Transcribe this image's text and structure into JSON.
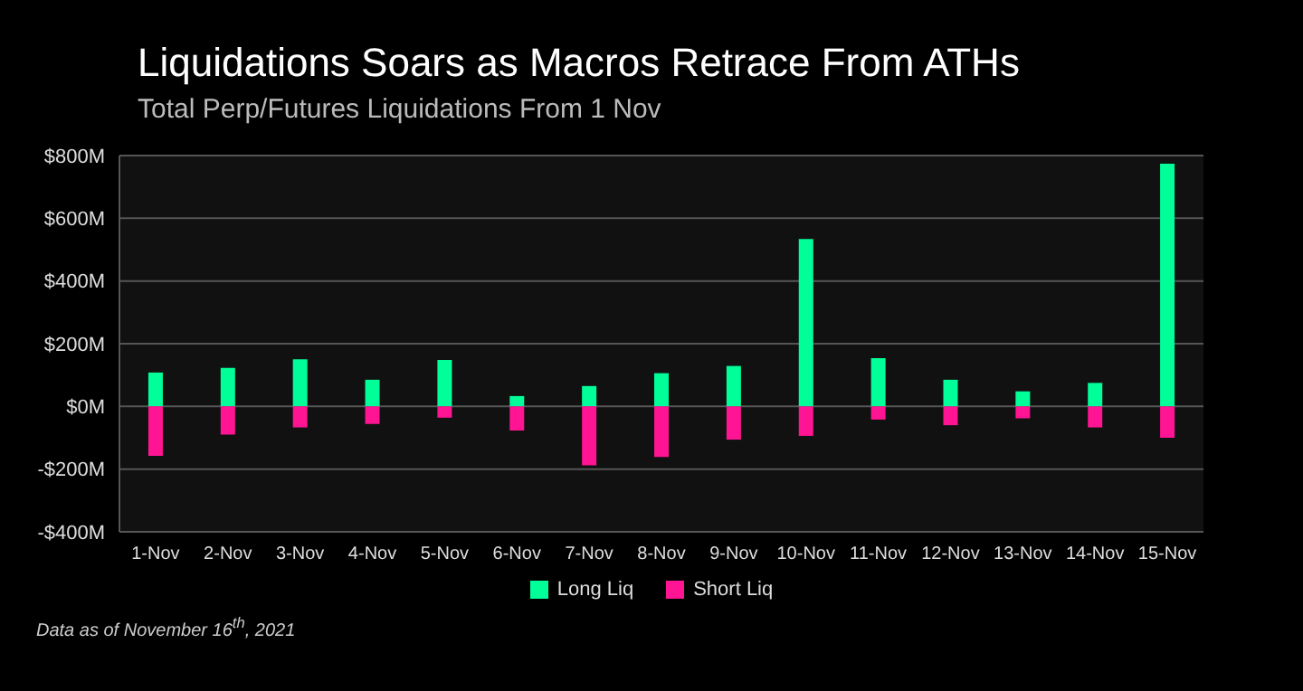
{
  "chart_data": {
    "type": "bar",
    "title": "Liquidations Soars as Macros Retrace From ATHs",
    "subtitle": "Total Perp/Futures Liquidations From 1 Nov",
    "categories": [
      "1-Nov",
      "2-Nov",
      "3-Nov",
      "4-Nov",
      "5-Nov",
      "6-Nov",
      "7-Nov",
      "8-Nov",
      "9-Nov",
      "10-Nov",
      "11-Nov",
      "12-Nov",
      "13-Nov",
      "14-Nov",
      "15-Nov"
    ],
    "series": [
      {
        "name": "Long Liq",
        "color": "#00ff99",
        "values": [
          108,
          123,
          150,
          85,
          148,
          33,
          65,
          106,
          129,
          534,
          154,
          85,
          48,
          75,
          774
        ]
      },
      {
        "name": "Short Liq",
        "color": "#ff1493",
        "values": [
          -158,
          -90,
          -67,
          -56,
          -36,
          -77,
          -188,
          -161,
          -106,
          -94,
          -42,
          -60,
          -38,
          -67,
          -100
        ]
      }
    ],
    "stacked": true,
    "ylim": [
      -400,
      800
    ],
    "yticks": [
      {
        "value": -400,
        "label": "-$400M"
      },
      {
        "value": -200,
        "label": "-$200M"
      },
      {
        "value": 0,
        "label": "$0M"
      },
      {
        "value": 200,
        "label": "$200M"
      },
      {
        "value": 400,
        "label": "$400M"
      },
      {
        "value": 600,
        "label": "$600M"
      },
      {
        "value": 800,
        "label": "$800M"
      }
    ],
    "grid": "y",
    "legend": "bottom",
    "annotations": [
      "Data as of November 16$^{th}$, 2021"
    ]
  }
}
